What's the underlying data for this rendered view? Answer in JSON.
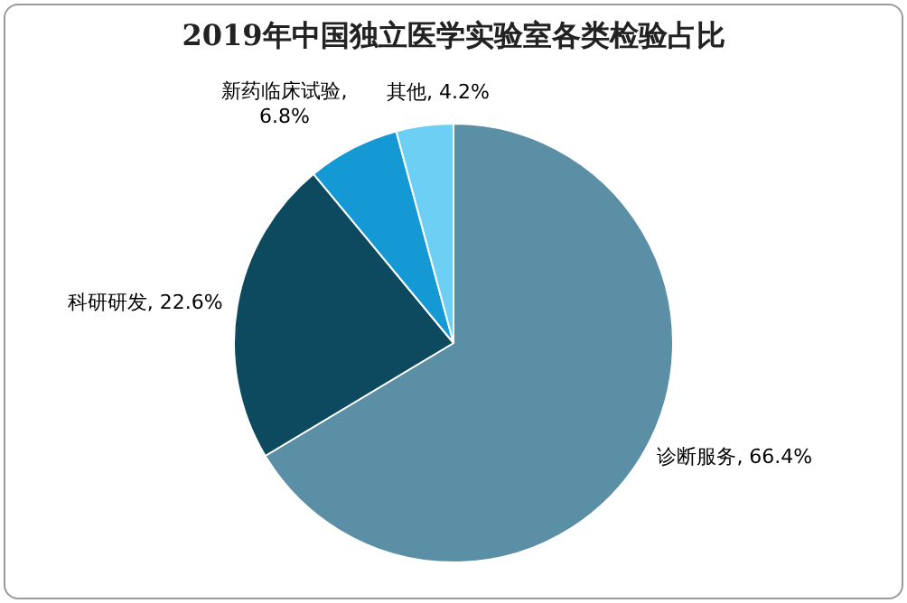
{
  "chart_data": {
    "type": "pie",
    "title": "2019年中国独立医学实验室各类检验占比",
    "categories": [
      "诊断服务",
      "科研研发",
      "新药临床试验",
      "其他"
    ],
    "values": [
      66.4,
      22.6,
      6.8,
      4.2
    ],
    "value_labels": [
      ", 66.4%",
      ", 22.6%",
      ",\n6.8%",
      ", 4.2%"
    ],
    "colors": [
      "#5b8fa6",
      "#0d4a5f",
      "#1499d5",
      "#6dcff4"
    ],
    "legend": false
  }
}
